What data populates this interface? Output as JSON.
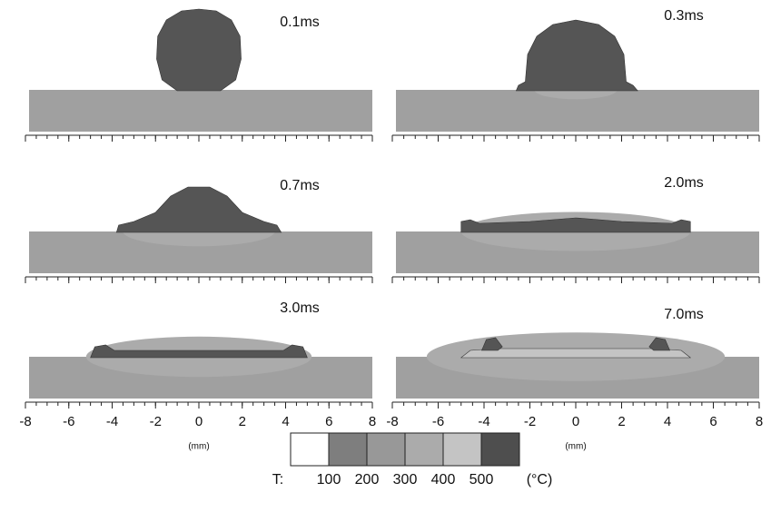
{
  "panels": [
    {
      "time": "0.1ms"
    },
    {
      "time": "0.3ms"
    },
    {
      "time": "0.7ms"
    },
    {
      "time": "2.0ms"
    },
    {
      "time": "3.0ms"
    },
    {
      "time": "7.0ms"
    }
  ],
  "x_axis": {
    "xlim": [
      -8,
      8
    ],
    "xticks": [
      -8,
      -6,
      -4,
      -2,
      0,
      2,
      4,
      6,
      8
    ],
    "unit": "(mm)"
  },
  "colorbar": {
    "prefix": "T:",
    "ticks": [
      100,
      200,
      300,
      400,
      500
    ],
    "unit": "(°C)",
    "colors": [
      "#ffffff",
      "#7e7e7e",
      "#989898",
      "#ababab",
      "#c4c4c4",
      "#4e4e4e"
    ]
  }
}
